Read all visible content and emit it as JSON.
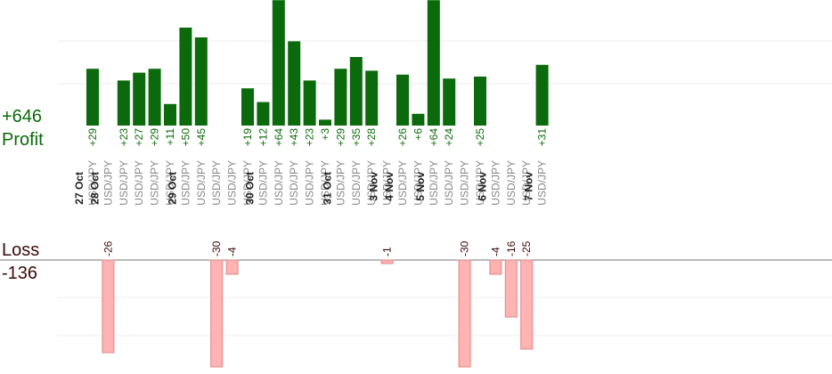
{
  "colors": {
    "profit_bar": "#0b6a0b",
    "profit_text": "#0a6a0a",
    "loss_bar": "#ffb3b3",
    "loss_edge": "#e08585",
    "loss_text": "#3a0a0a",
    "grid": "#ececec",
    "date_text": "#222222",
    "pair_text": "#888888"
  },
  "chart_data": {
    "type": "bar",
    "title": "",
    "profit_total": "+646",
    "profit_label": "Profit",
    "loss_label": "Loss",
    "loss_total": "-136",
    "columns": [
      {
        "date": "27 Oct",
        "pair": "USD/JPY",
        "profit": 29,
        "label": "+29"
      },
      {
        "date": "28 Oct",
        "pair": "USD/JPY",
        "loss": -26,
        "label": "-26"
      },
      {
        "pair": "USD/JPY",
        "profit": 23,
        "label": "+23"
      },
      {
        "pair": "USD/JPY",
        "profit": 27,
        "label": "+27"
      },
      {
        "pair": "USD/JPY",
        "profit": 29,
        "label": "+29"
      },
      {
        "pair": "USD/JPY",
        "profit": 11,
        "label": "+11"
      },
      {
        "date": "29 Oct",
        "pair": "USD/JPY",
        "profit": 50,
        "label": "+50"
      },
      {
        "pair": "USD/JPY",
        "profit": 45,
        "label": "+45"
      },
      {
        "pair": "USD/JPY",
        "loss": -30,
        "label": "-30"
      },
      {
        "pair": "USD/JPY",
        "loss": -4,
        "label": "-4"
      },
      {
        "pair": "USD/JPY",
        "profit": 19,
        "label": "+19"
      },
      {
        "date": "30 Oct",
        "pair": "USD/JPY",
        "profit": 12,
        "label": "+12"
      },
      {
        "pair": "USD/JPY",
        "profit": 64,
        "label": "+64"
      },
      {
        "pair": "USD/JPY",
        "profit": 43,
        "label": "+43"
      },
      {
        "pair": "USD/JPY",
        "profit": 23,
        "label": "+23"
      },
      {
        "pair": "USD/JPY",
        "profit": 3,
        "label": "+3"
      },
      {
        "date": "31 Oct",
        "pair": "USD/JPY",
        "profit": 29,
        "label": "+29"
      },
      {
        "pair": "USD/JPY",
        "profit": 35,
        "label": "+35"
      },
      {
        "pair": "USD/JPY",
        "profit": 28,
        "label": "+28"
      },
      {
        "date": "3 Nov",
        "pair": "USD/JPY",
        "loss": -1,
        "label": "-1"
      },
      {
        "date": "4 Nov",
        "pair": "USD/JPY",
        "profit": 26,
        "label": "+26"
      },
      {
        "pair": "USD/JPY",
        "profit": 6,
        "label": "+6"
      },
      {
        "date": "5 Nov",
        "pair": "USD/JPY",
        "profit": 64,
        "label": "+64"
      },
      {
        "pair": "USD/JPY",
        "profit": 24,
        "label": "+24"
      },
      {
        "pair": "USD/JPY",
        "loss": -30,
        "label": "-30"
      },
      {
        "pair": "USD/JPY",
        "profit": 25,
        "label": "+25"
      },
      {
        "date": "6 Nov",
        "pair": "USD/JPY",
        "loss": -4,
        "label": "-4"
      },
      {
        "pair": "USD/JPY",
        "loss": -16,
        "label": "-16"
      },
      {
        "pair": "USD/JPY",
        "loss": -25,
        "label": "-25"
      },
      {
        "date": "7 Nov",
        "pair": "USD/JPY",
        "profit": 31,
        "label": "+31"
      }
    ]
  }
}
